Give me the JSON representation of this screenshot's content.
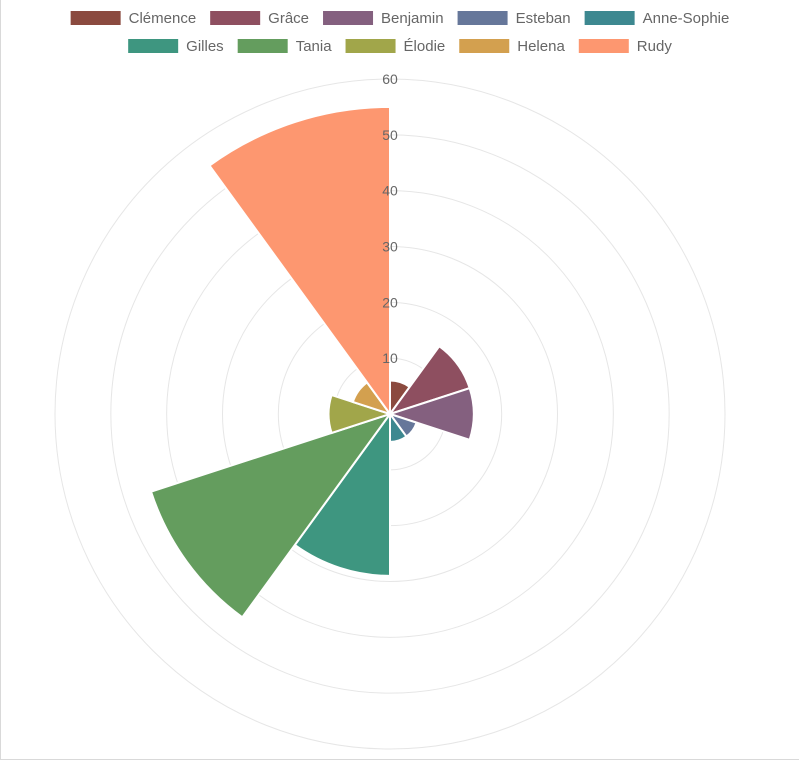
{
  "chart_data": {
    "type": "polar-area",
    "legend_position": "top",
    "grid": true,
    "rlim": [
      0,
      60
    ],
    "ticks": [
      "10",
      "20",
      "30",
      "40",
      "50",
      "60"
    ],
    "series": [
      {
        "name": "Clémence",
        "value": 6,
        "color": "#8b4a3f"
      },
      {
        "name": "Grâce",
        "value": 15,
        "color": "#8e4f60"
      },
      {
        "name": "Benjamin",
        "value": 15,
        "color": "#84607f"
      },
      {
        "name": "Esteban",
        "value": 5,
        "color": "#66779a"
      },
      {
        "name": "Anne-Sophie",
        "value": 5,
        "color": "#3d8890"
      },
      {
        "name": "Gilles",
        "value": 29,
        "color": "#3e9680"
      },
      {
        "name": "Tania",
        "value": 45,
        "color": "#649d5e"
      },
      {
        "name": "Élodie",
        "value": 11,
        "color": "#a1a64a"
      },
      {
        "name": "Helena",
        "value": 7,
        "color": "#d3a04f"
      },
      {
        "name": "Rudy",
        "value": 55,
        "color": "#fd9770"
      }
    ]
  }
}
